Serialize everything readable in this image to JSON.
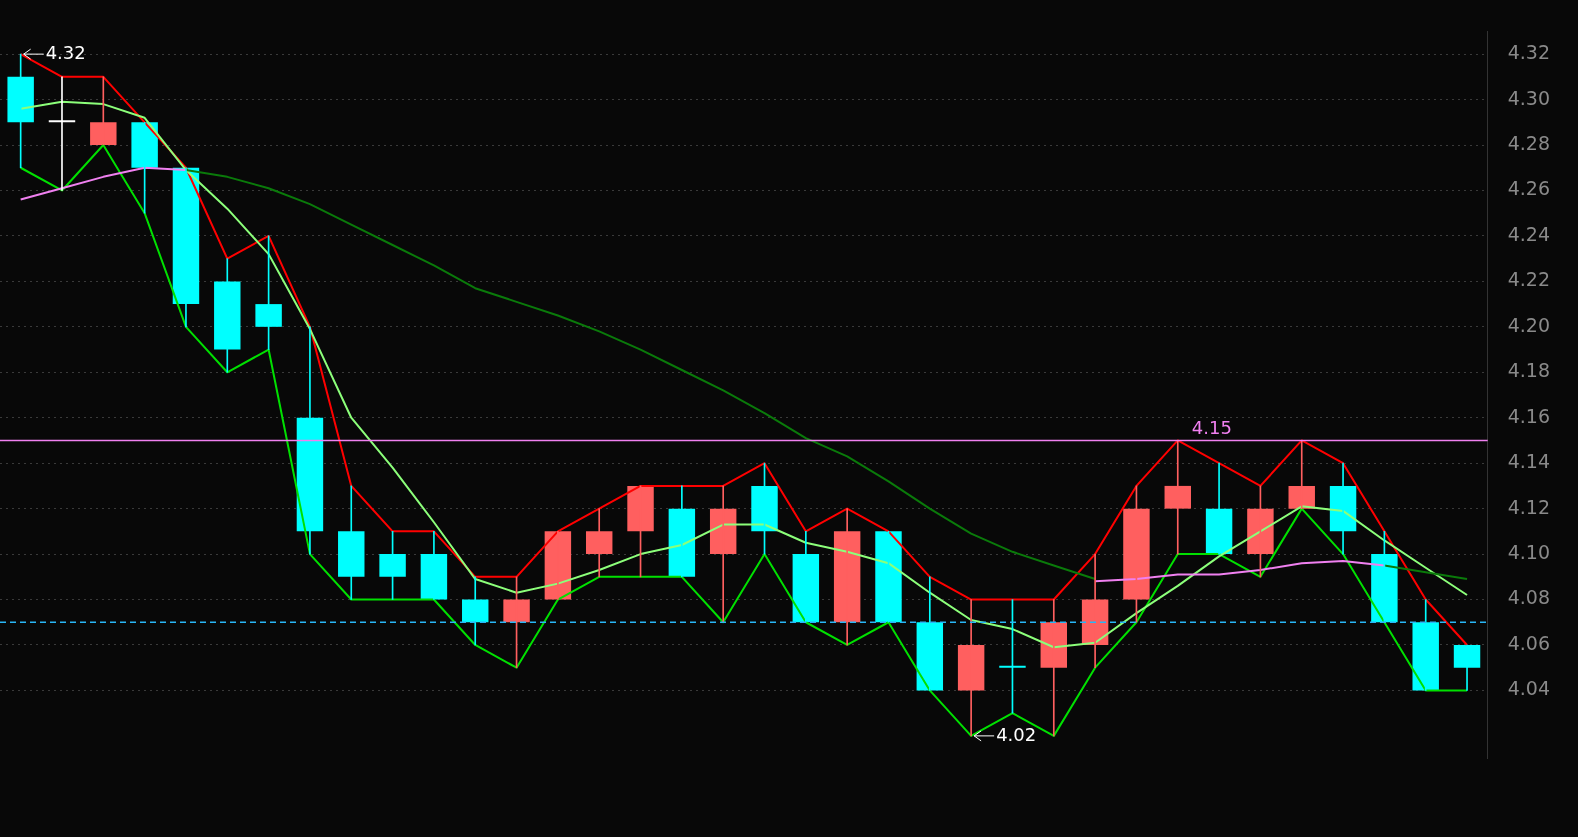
{
  "chart_data": {
    "type": "candlestick",
    "categories": [
      null,
      null,
      null,
      null,
      null,
      null,
      null,
      null,
      null,
      null,
      null,
      null,
      null,
      null,
      null,
      null,
      null,
      null,
      null,
      null,
      null,
      null,
      null,
      null,
      null,
      null,
      null,
      null,
      null,
      null,
      null,
      null,
      null,
      null,
      null,
      null
    ],
    "ohlc": [
      [
        4.31,
        4.32,
        4.27,
        4.29
      ],
      [
        4.29,
        4.31,
        4.26,
        4.29
      ],
      [
        4.28,
        4.31,
        4.28,
        4.29
      ],
      [
        4.29,
        4.29,
        4.25,
        4.27
      ],
      [
        4.27,
        4.27,
        4.2,
        4.21
      ],
      [
        4.22,
        4.23,
        4.18,
        4.19
      ],
      [
        4.21,
        4.24,
        4.19,
        4.2
      ],
      [
        4.16,
        4.2,
        4.1,
        4.11
      ],
      [
        4.11,
        4.13,
        4.08,
        4.09
      ],
      [
        4.1,
        4.11,
        4.08,
        4.09
      ],
      [
        4.1,
        4.11,
        4.08,
        4.08
      ],
      [
        4.08,
        4.09,
        4.06,
        4.07
      ],
      [
        4.07,
        4.09,
        4.05,
        4.08
      ],
      [
        4.08,
        4.11,
        4.08,
        4.11
      ],
      [
        4.1,
        4.12,
        4.09,
        4.11
      ],
      [
        4.11,
        4.13,
        4.09,
        4.13
      ],
      [
        4.12,
        4.13,
        4.09,
        4.09
      ],
      [
        4.1,
        4.13,
        4.07,
        4.12
      ],
      [
        4.13,
        4.14,
        4.1,
        4.11
      ],
      [
        4.1,
        4.11,
        4.07,
        4.07
      ],
      [
        4.07,
        4.12,
        4.06,
        4.11
      ],
      [
        4.11,
        4.11,
        4.07,
        4.07
      ],
      [
        4.07,
        4.09,
        4.04,
        4.04
      ],
      [
        4.04,
        4.08,
        4.02,
        4.06
      ],
      [
        4.05,
        4.08,
        4.03,
        4.05
      ],
      [
        4.05,
        4.08,
        4.02,
        4.07
      ],
      [
        4.06,
        4.1,
        4.05,
        4.08
      ],
      [
        4.08,
        4.13,
        4.07,
        4.12
      ],
      [
        4.12,
        4.15,
        4.1,
        4.13
      ],
      [
        4.12,
        4.14,
        4.1,
        4.1
      ],
      [
        4.1,
        4.13,
        4.09,
        4.12
      ],
      [
        4.12,
        4.15,
        4.12,
        4.13
      ],
      [
        4.13,
        4.14,
        4.1,
        4.11
      ],
      [
        4.1,
        4.11,
        4.07,
        4.07
      ],
      [
        4.07,
        4.08,
        4.04,
        4.04
      ],
      [
        4.06,
        4.06,
        4.04,
        4.05
      ]
    ],
    "colors": [
      "#00ffff",
      "#ffffff",
      "#ff5f5f",
      "#00ffff",
      "#00ffff",
      "#00ffff",
      "#00ffff",
      "#00ffff",
      "#00ffff",
      "#00ffff",
      "#00ffff",
      "#00ffff",
      "#ff5f5f",
      "#ff5f5f",
      "#ff5f5f",
      "#ff5f5f",
      "#00ffff",
      "#ff5f5f",
      "#00ffff",
      "#00ffff",
      "#ff5f5f",
      "#00ffff",
      "#00ffff",
      "#ff5f5f",
      "#00ffff",
      "#ff5f5f",
      "#ff5f5f",
      "#ff5f5f",
      "#ff5f5f",
      "#00ffff",
      "#ff5f5f",
      "#ff5f5f",
      "#00ffff",
      "#00ffff",
      "#00ffff",
      "#00ffff"
    ],
    "series": [
      {
        "type": "line",
        "color": "#ff0000",
        "values": [
          4.32,
          4.31,
          4.31,
          4.29,
          4.27,
          4.23,
          4.24,
          4.2,
          4.13,
          4.11,
          4.11,
          4.09,
          4.09,
          4.11,
          4.12,
          4.13,
          4.13,
          4.13,
          4.14,
          4.11,
          4.12,
          4.11,
          4.09,
          4.08,
          4.08,
          4.08,
          4.1,
          4.13,
          4.15,
          4.14,
          4.13,
          4.15,
          4.14,
          4.11,
          4.08,
          4.06
        ]
      },
      {
        "type": "line",
        "color": "#00e000",
        "values": [
          4.27,
          4.26,
          4.28,
          4.25,
          4.2,
          4.18,
          4.19,
          4.1,
          4.08,
          4.08,
          4.08,
          4.06,
          4.05,
          4.08,
          4.09,
          4.09,
          4.09,
          4.07,
          4.1,
          4.07,
          4.06,
          4.07,
          4.04,
          4.02,
          4.03,
          4.02,
          4.05,
          4.07,
          4.1,
          4.1,
          4.09,
          4.12,
          4.1,
          4.07,
          4.04,
          4.04
        ]
      },
      {
        "type": "line",
        "color": "#8cff7a",
        "values": [
          4.296,
          4.299,
          4.298,
          4.292,
          4.269,
          4.252,
          4.232,
          4.199,
          4.16,
          4.138,
          4.114,
          4.089,
          4.083,
          4.087,
          4.093,
          4.1,
          4.104,
          4.113,
          4.113,
          4.105,
          4.101,
          4.096,
          4.083,
          4.071,
          4.067,
          4.059,
          4.061,
          4.074,
          4.086,
          4.099,
          4.11,
          4.121,
          4.119,
          4.106,
          4.094,
          4.082
        ]
      },
      {
        "type": "line",
        "color": "#f080f0",
        "values": [
          4.256,
          4.261,
          4.266,
          4.27,
          4.269,
          null,
          null,
          null,
          null,
          null,
          null,
          null,
          null,
          null,
          null,
          null,
          null,
          null,
          null,
          null,
          null,
          null,
          null,
          null,
          null,
          null,
          4.088,
          4.089,
          4.091,
          4.091,
          4.093,
          4.096,
          4.097,
          4.095,
          null,
          null
        ]
      },
      {
        "type": "line",
        "color": "#0a7a0a",
        "values": [
          null,
          null,
          null,
          null,
          4.269,
          4.266,
          4.261,
          4.254,
          4.245,
          4.236,
          4.227,
          4.217,
          4.211,
          4.205,
          4.198,
          4.19,
          4.181,
          4.172,
          4.162,
          4.151,
          4.143,
          4.132,
          4.12,
          4.109,
          4.101,
          4.095,
          4.089,
          null,
          null,
          null,
          null,
          null,
          null,
          4.095,
          4.092,
          4.089
        ]
      }
    ],
    "ylim": [
      4.01,
      4.33
    ],
    "yticks": [
      {
        "value": 4.04,
        "label": "4.04"
      },
      {
        "value": 4.06,
        "label": "4.06"
      },
      {
        "value": 4.08,
        "label": "4.08"
      },
      {
        "value": 4.1,
        "label": "4.10"
      },
      {
        "value": 4.12,
        "label": "4.12"
      },
      {
        "value": 4.14,
        "label": "4.14"
      },
      {
        "value": 4.16,
        "label": "4.16"
      },
      {
        "value": 4.18,
        "label": "4.18"
      },
      {
        "value": 4.2,
        "label": "4.20"
      },
      {
        "value": 4.22,
        "label": "4.22"
      },
      {
        "value": 4.24,
        "label": "4.24"
      },
      {
        "value": 4.26,
        "label": "4.26"
      },
      {
        "value": 4.28,
        "label": "4.28"
      },
      {
        "value": 4.3,
        "label": "4.30"
      },
      {
        "value": 4.32,
        "label": "4.32"
      }
    ],
    "tick_labels": "y",
    "grid": "y",
    "legend": false,
    "ref_lines": [
      {
        "axis": "y",
        "value": 4.07,
        "color": "#29b6f6",
        "line_style": "dashed"
      },
      {
        "axis": "y",
        "value": 4.15,
        "label": "4.15",
        "color": "#f080f0",
        "line_style": "solid"
      }
    ],
    "annotations": [
      "4.32",
      "4.02"
    ]
  }
}
